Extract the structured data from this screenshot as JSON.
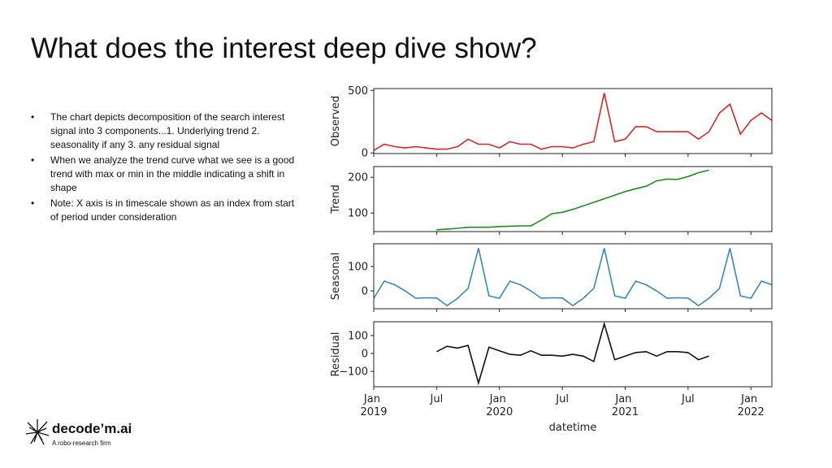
{
  "title": "What does the interest deep dive show?",
  "bullets": [
    "The chart depicts decomposition of the search interest signal into 3 components...1. Underlying trend 2. seasonality if any 3. any residual signal",
    "When we analyze the trend curve what we see is a good trend with max or min in the middle indicating a shift in shape",
    "Note: X axis is in timescale shown as an index from start of period under consideration"
  ],
  "logo": {
    "name": "decode’m.ai",
    "tagline": "A robo-research firm"
  },
  "chart_data": [
    {
      "type": "line",
      "ylabel": "Observed",
      "color": "#d62728",
      "x": [
        "2019-01",
        "2019-02",
        "2019-03",
        "2019-04",
        "2019-05",
        "2019-06",
        "2019-07",
        "2019-08",
        "2019-09",
        "2019-10",
        "2019-11",
        "2019-12",
        "2020-01",
        "2020-02",
        "2020-03",
        "2020-04",
        "2020-05",
        "2020-06",
        "2020-07",
        "2020-08",
        "2020-09",
        "2020-10",
        "2020-11",
        "2020-12",
        "2021-01",
        "2021-02",
        "2021-03",
        "2021-04",
        "2021-05",
        "2021-06",
        "2021-07",
        "2021-08",
        "2021-09",
        "2021-10",
        "2021-11",
        "2021-12",
        "2022-01",
        "2022-02",
        "2022-03"
      ],
      "values": [
        20,
        70,
        50,
        40,
        50,
        40,
        30,
        30,
        50,
        110,
        70,
        70,
        40,
        90,
        70,
        70,
        30,
        50,
        50,
        40,
        70,
        90,
        480,
        90,
        110,
        210,
        210,
        170,
        170,
        170,
        170,
        110,
        170,
        320,
        390,
        150,
        260,
        320,
        260
      ],
      "ylim": [
        -5,
        515
      ],
      "yticks": [
        0,
        500
      ]
    },
    {
      "type": "line",
      "ylabel": "Trend",
      "color": "#228b22",
      "x": [
        "2019-01",
        "2019-02",
        "2019-03",
        "2019-04",
        "2019-05",
        "2019-06",
        "2019-07",
        "2019-08",
        "2019-09",
        "2019-10",
        "2019-11",
        "2019-12",
        "2020-01",
        "2020-02",
        "2020-03",
        "2020-04",
        "2020-05",
        "2020-06",
        "2020-07",
        "2020-08",
        "2020-09",
        "2020-10",
        "2020-11",
        "2020-12",
        "2021-01",
        "2021-02",
        "2021-03",
        "2021-04",
        "2021-05",
        "2021-06",
        "2021-07",
        "2021-08",
        "2021-09",
        "2021-10",
        "2021-11",
        "2021-12",
        "2022-01",
        "2022-02",
        "2022-03"
      ],
      "values": [
        null,
        null,
        null,
        null,
        null,
        null,
        53,
        55,
        57,
        60,
        60,
        60,
        62,
        63,
        64,
        64,
        80,
        98,
        102,
        110,
        120,
        130,
        140,
        150,
        160,
        168,
        175,
        190,
        195,
        194,
        202,
        213,
        220,
        null,
        null,
        null,
        null,
        null,
        null
      ],
      "ylim": [
        48,
        230
      ],
      "yticks": [
        100,
        200
      ]
    },
    {
      "type": "line",
      "ylabel": "Seasonal",
      "color": "#3a87c0",
      "x": [
        "2019-01",
        "2019-02",
        "2019-03",
        "2019-04",
        "2019-05",
        "2019-06",
        "2019-07",
        "2019-08",
        "2019-09",
        "2019-10",
        "2019-11",
        "2019-12",
        "2020-01",
        "2020-02",
        "2020-03",
        "2020-04",
        "2020-05",
        "2020-06",
        "2020-07",
        "2020-08",
        "2020-09",
        "2020-10",
        "2020-11",
        "2020-12",
        "2021-01",
        "2021-02",
        "2021-03",
        "2021-04",
        "2021-05",
        "2021-06",
        "2021-07",
        "2021-08",
        "2021-09",
        "2021-10",
        "2021-11",
        "2021-12",
        "2022-01",
        "2022-02",
        "2022-03"
      ],
      "values": [
        -30,
        40,
        25,
        0,
        -30,
        -28,
        -29,
        -60,
        -30,
        10,
        175,
        -20,
        -30,
        40,
        25,
        0,
        -30,
        -28,
        -29,
        -60,
        -30,
        10,
        175,
        -20,
        -30,
        40,
        25,
        0,
        -30,
        -28,
        -29,
        -60,
        -30,
        10,
        175,
        -20,
        -30,
        40,
        25
      ],
      "ylim": [
        -73,
        193
      ],
      "yticks": [
        0,
        100
      ]
    },
    {
      "type": "line",
      "ylabel": "Residual",
      "color": "#111111",
      "xlabel": "datetime",
      "x": [
        "2019-01",
        "2019-02",
        "2019-03",
        "2019-04",
        "2019-05",
        "2019-06",
        "2019-07",
        "2019-08",
        "2019-09",
        "2019-10",
        "2019-11",
        "2019-12",
        "2020-01",
        "2020-02",
        "2020-03",
        "2020-04",
        "2020-05",
        "2020-06",
        "2020-07",
        "2020-08",
        "2020-09",
        "2020-10",
        "2020-11",
        "2020-12",
        "2021-01",
        "2021-02",
        "2021-03",
        "2021-04",
        "2021-05",
        "2021-06",
        "2021-07",
        "2021-08",
        "2021-09",
        "2021-10",
        "2021-11",
        "2021-12",
        "2022-01",
        "2022-02",
        "2022-03"
      ],
      "values": [
        null,
        null,
        null,
        null,
        null,
        null,
        10,
        40,
        30,
        45,
        -165,
        35,
        15,
        -5,
        -10,
        15,
        -10,
        -10,
        -15,
        -5,
        -15,
        -45,
        165,
        -35,
        -15,
        5,
        10,
        -15,
        10,
        10,
        5,
        -35,
        -15,
        null,
        null,
        null,
        null,
        null,
        null
      ],
      "ylim": [
        -186,
        177
      ],
      "yticks": [
        {
          "value": -100,
          "label": "−100"
        },
        0,
        100
      ],
      "xlim": [
        "2019-01",
        "2022-03"
      ],
      "xticks": [
        {
          "value": "2019-01",
          "label": "Jan 2019"
        },
        {
          "value": "2019-07",
          "label": "Jul"
        },
        {
          "value": "2020-01",
          "label": "Jan 2020"
        },
        {
          "value": "2020-07",
          "label": "Jul"
        },
        {
          "value": "2021-01",
          "label": "Jan 2021"
        },
        {
          "value": "2021-07",
          "label": "Jul"
        },
        {
          "value": "2022-01",
          "label": "Jan 2022"
        }
      ]
    }
  ]
}
